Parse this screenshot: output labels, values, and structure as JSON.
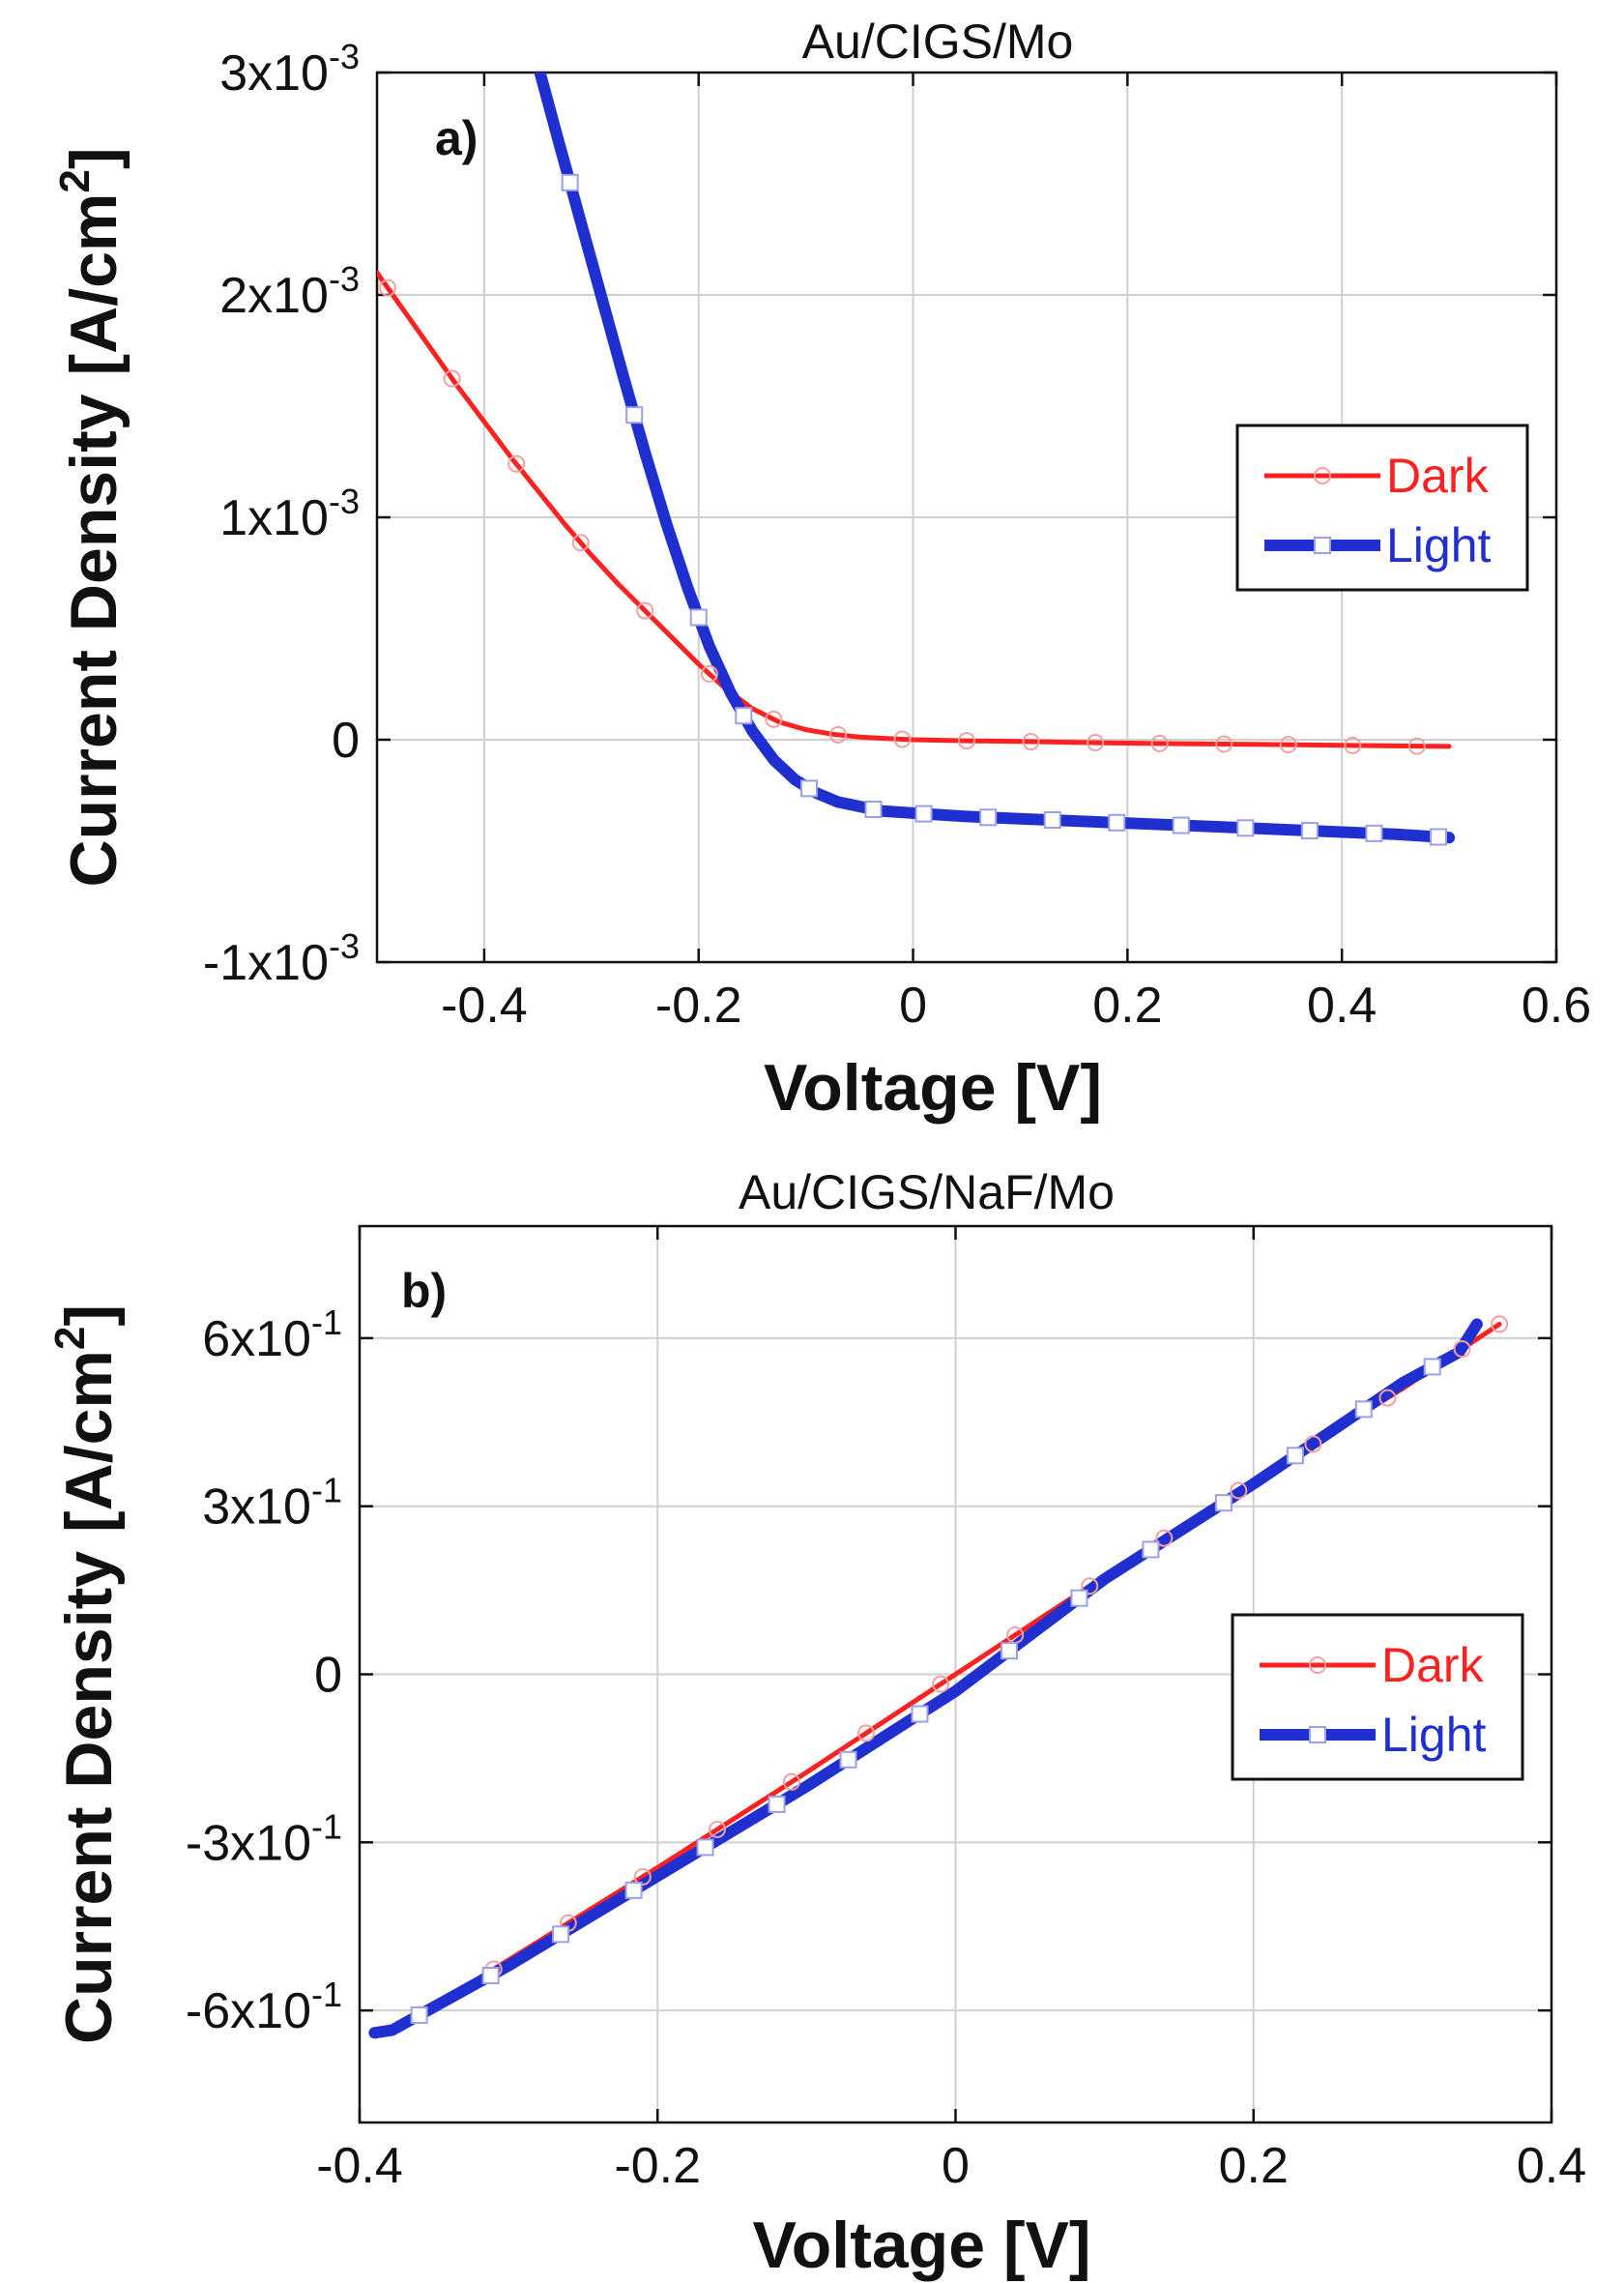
{
  "chart_data": [
    {
      "type": "line",
      "panel_label": "a)",
      "title": "Au/CIGS/Mo",
      "xlabel": "Voltage [V]",
      "ylabel": "Current Density [A/cm²]",
      "ylabel_base": "Current Density [A/cm",
      "ylabel_sup": "2",
      "ylabel_end": "]",
      "xlim": [
        -0.5,
        0.6
      ],
      "ylim": [
        -0.001,
        0.003
      ],
      "x_ticks": [
        -0.4,
        -0.2,
        0,
        0.2,
        0.4,
        0.6
      ],
      "x_tick_labels": [
        "-0.4",
        "-0.2",
        "0",
        "0.2",
        "0.4",
        "0.6"
      ],
      "y_ticks": [
        -0.001,
        0,
        0.001,
        0.002,
        0.003
      ],
      "y_tick_labels": [
        {
          "base": "-1x10",
          "exp": "-3"
        },
        {
          "base": "0",
          "exp": ""
        },
        {
          "base": "1x10",
          "exp": "-3"
        },
        {
          "base": "2x10",
          "exp": "-3"
        },
        {
          "base": "3x10",
          "exp": "-3"
        }
      ],
      "grid": true,
      "legend_position": "right-middle",
      "series": [
        {
          "name": "Dark",
          "color": "#ff2020",
          "marker": "circle",
          "x": [
            -0.5,
            -0.475,
            -0.45,
            -0.425,
            -0.4,
            -0.375,
            -0.35,
            -0.325,
            -0.3,
            -0.275,
            -0.25,
            -0.225,
            -0.2,
            -0.175,
            -0.15,
            -0.125,
            -0.1,
            -0.075,
            -0.05,
            -0.025,
            0,
            0.05,
            0.1,
            0.15,
            0.2,
            0.25,
            0.3,
            0.35,
            0.4,
            0.45,
            0.5
          ],
          "y": [
            0.0021,
            0.00193,
            0.00176,
            0.00159,
            0.00143,
            0.00127,
            0.00112,
            0.00097,
            0.00083,
            0.0007,
            0.00058,
            0.00046,
            0.00034,
            0.00023,
            0.00014,
            8e-05,
            4.5e-05,
            2.5e-05,
            1.2e-05,
            5e-06,
            0.0,
            -5e-06,
            -8e-06,
            -1.2e-05,
            -1.5e-05,
            -1.8e-05,
            -2e-05,
            -2.2e-05,
            -2.5e-05,
            -2.8e-05,
            -3e-05
          ],
          "marker_x": [
            -0.49,
            -0.43,
            -0.37,
            -0.31,
            -0.25,
            -0.19,
            -0.13,
            -0.07,
            -0.01,
            0.05,
            0.11,
            0.17,
            0.23,
            0.29,
            0.35,
            0.41,
            0.47
          ]
        },
        {
          "name": "Light",
          "color": "#1f2fd0",
          "marker": "square",
          "x": [
            -0.348,
            -0.33,
            -0.31,
            -0.29,
            -0.27,
            -0.25,
            -0.23,
            -0.21,
            -0.19,
            -0.17,
            -0.15,
            -0.13,
            -0.11,
            -0.09,
            -0.07,
            -0.05,
            -0.03,
            0,
            0.05,
            0.1,
            0.15,
            0.2,
            0.25,
            0.3,
            0.35,
            0.4,
            0.45,
            0.5
          ],
          "y": [
            0.003,
            0.00268,
            0.00233,
            0.00198,
            0.00163,
            0.00129,
            0.00097,
            0.00068,
            0.00042,
            0.00021,
            4e-05,
            -9e-05,
            -0.00018,
            -0.00024,
            -0.00028,
            -0.0003,
            -0.00032,
            -0.00033,
            -0.000345,
            -0.000355,
            -0.000365,
            -0.000375,
            -0.000385,
            -0.000395,
            -0.000405,
            -0.000415,
            -0.000425,
            -0.00044
          ],
          "marker_x": [
            -0.32,
            -0.26,
            -0.2,
            -0.158,
            -0.097,
            -0.037,
            0.01,
            0.07,
            0.13,
            0.19,
            0.25,
            0.31,
            0.37,
            0.43,
            0.49
          ]
        }
      ]
    },
    {
      "type": "line",
      "panel_label": "b)",
      "title": "Au/CIGS/NaF/Mo",
      "xlabel": "Voltage [V]",
      "ylabel": "Current Density [A/cm²]",
      "ylabel_base": "Current Density [A/cm",
      "ylabel_sup": "2",
      "ylabel_end": "]",
      "xlim": [
        -0.4,
        0.4
      ],
      "ylim": [
        -0.8,
        0.8
      ],
      "x_ticks": [
        -0.4,
        -0.2,
        0,
        0.2,
        0.4
      ],
      "x_tick_labels": [
        "-0.4",
        "-0.2",
        "0",
        "0.2",
        "0.4"
      ],
      "y_ticks": [
        -0.6,
        -0.3,
        0,
        0.3,
        0.6
      ],
      "y_tick_labels": [
        {
          "base": "-6x10",
          "exp": "-1"
        },
        {
          "base": "-3x10",
          "exp": "-1"
        },
        {
          "base": "0",
          "exp": ""
        },
        {
          "base": "3x10",
          "exp": "-1"
        },
        {
          "base": "6x10",
          "exp": "-1"
        }
      ],
      "grid": true,
      "legend_position": "right-middle",
      "series": [
        {
          "name": "Dark",
          "color": "#ff2020",
          "marker": "circle",
          "x": [
            -0.38,
            -0.3,
            -0.2,
            -0.1,
            0,
            0.1,
            0.2,
            0.3,
            0.365
          ],
          "y": [
            -0.64,
            -0.51,
            -0.345,
            -0.175,
            0.0,
            0.175,
            0.345,
            0.51,
            0.625
          ],
          "marker_x": [
            -0.36,
            -0.31,
            -0.26,
            -0.21,
            -0.16,
            -0.11,
            -0.06,
            -0.01,
            0.04,
            0.09,
            0.14,
            0.19,
            0.24,
            0.29,
            0.34,
            0.365
          ]
        },
        {
          "name": "Light",
          "color": "#1f2fd0",
          "marker": "square",
          "x": [
            -0.39,
            -0.378,
            -0.3,
            -0.2,
            -0.1,
            0,
            0.1,
            0.2,
            0.3,
            0.338,
            0.35
          ],
          "y": [
            -0.64,
            -0.635,
            -0.52,
            -0.36,
            -0.2,
            -0.03,
            0.17,
            0.34,
            0.52,
            0.575,
            0.625
          ],
          "marker_x": [
            -0.36,
            -0.312,
            -0.265,
            -0.216,
            -0.168,
            -0.12,
            -0.072,
            -0.024,
            0.036,
            0.083,
            0.131,
            0.18,
            0.228,
            0.274,
            0.32
          ]
        }
      ]
    }
  ]
}
